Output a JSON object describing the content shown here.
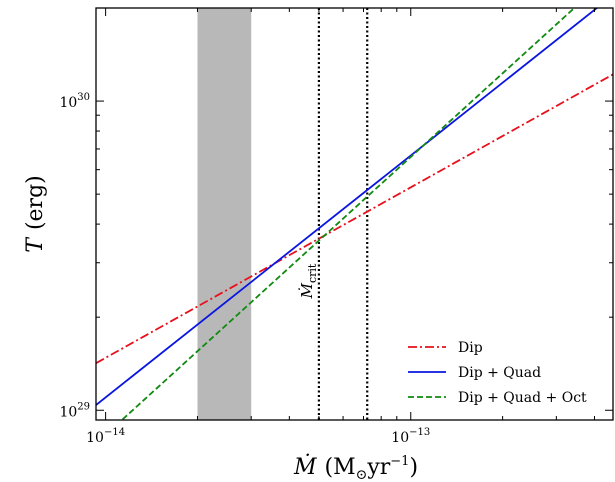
{
  "chart_data": {
    "type": "line",
    "xscale": "log",
    "yscale": "log",
    "xlim": [
      9.3e-15,
      4.6e-13
    ],
    "ylim": [
      9.3e+28,
      2e+30
    ],
    "xlabel_main": "Ṁ",
    "xlabel_unit_open": "(M",
    "xlabel_unit_sub": "⊙",
    "xlabel_unit_rest": "yr",
    "xlabel_unit_exp": "−1",
    "xlabel_unit_close": ")",
    "ylabel_main": "T",
    "ylabel_unit": "(erg)",
    "xticks": [
      {
        "value": 1e-14,
        "base": "10",
        "exp": "−14"
      },
      {
        "value": 1e-13,
        "base": "10",
        "exp": "−13"
      }
    ],
    "yticks": [
      {
        "value": 1e+29,
        "base": "10",
        "exp": "29"
      },
      {
        "value": 1e+30,
        "base": "10",
        "exp": "30"
      }
    ],
    "shaded_region": {
      "x": [
        2e-14,
        3e-14
      ],
      "color": "#b8b8b8"
    },
    "vlines": [
      {
        "x": 5e-14,
        "style": "dotted"
      },
      {
        "x": 7.2e-14,
        "style": "dotted"
      }
    ],
    "annotation": {
      "main": "Ṁ",
      "sub": "crit",
      "x": 4.75e-14,
      "y": 2.3e+29
    },
    "series": [
      {
        "name": "Dip",
        "color": "#e8101c",
        "dash": "dashdot",
        "x": [
          9.3e-15,
          4.6e-13
        ],
        "y": [
          1.42e+29,
          1.22e+30
        ]
      },
      {
        "name": "Dip + Quad",
        "color": "#0a16e0",
        "dash": "solid",
        "x": [
          9.3e-15,
          4.6e-13
        ],
        "y": [
          1.04e+29,
          2.2e+30
        ]
      },
      {
        "name": "Dip + Quad + Oct",
        "color": "#108a10",
        "dash": "dashed",
        "x": [
          9.3e-15,
          4.6e-13
        ],
        "y": [
          7.8e+28,
          2.6e+30
        ]
      }
    ],
    "legend_position": "lower-right",
    "grid": false
  }
}
